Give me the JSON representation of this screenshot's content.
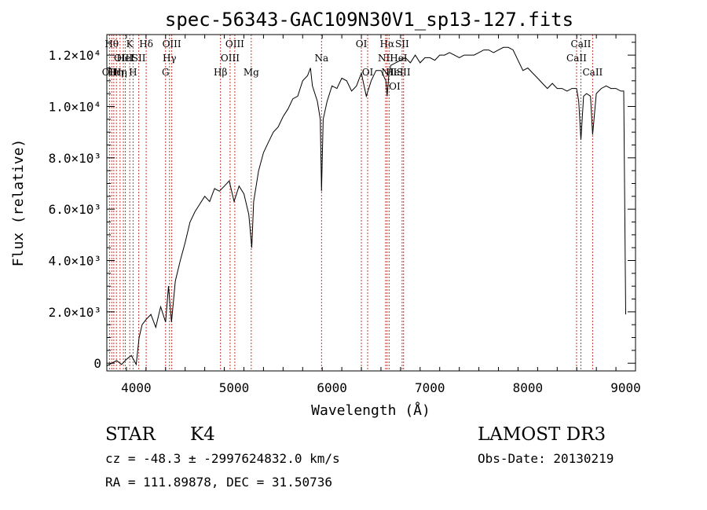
{
  "chart_data": {
    "type": "line",
    "title": "spec-56343-GAC109N30V1_sp13-127.fits",
    "xlabel": "Wavelength (Å)",
    "ylabel": "Flux (relative)",
    "xlim": [
      3700,
      9100
    ],
    "ylim": [
      -300,
      12800
    ],
    "x_ticks": [
      {
        "value": 4000,
        "label": "4000"
      },
      {
        "value": 5000,
        "label": "5000"
      },
      {
        "value": 6000,
        "label": "6000"
      },
      {
        "value": 7000,
        "label": "7000"
      },
      {
        "value": 8000,
        "label": "8000"
      },
      {
        "value": 9000,
        "label": "9000"
      }
    ],
    "y_ticks": [
      {
        "value": 0,
        "label": "0"
      },
      {
        "value": 2000,
        "label": "2.0×10³"
      },
      {
        "value": 4000,
        "label": "4.0×10³"
      },
      {
        "value": 6000,
        "label": "6.0×10³"
      },
      {
        "value": 8000,
        "label": "8.0×10³"
      },
      {
        "value": 10000,
        "label": "1.0×10⁴"
      },
      {
        "value": 12000,
        "label": "1.2×10⁴"
      }
    ],
    "series": [
      {
        "name": "spectrum",
        "x": [
          3700,
          3750,
          3800,
          3850,
          3900,
          3950,
          4000,
          4030,
          4060,
          4100,
          4150,
          4200,
          4250,
          4300,
          4330,
          4360,
          4400,
          4450,
          4500,
          4550,
          4600,
          4650,
          4700,
          4750,
          4800,
          4850,
          4900,
          4950,
          5000,
          5050,
          5100,
          5150,
          5180,
          5200,
          5250,
          5300,
          5350,
          5400,
          5450,
          5500,
          5550,
          5600,
          5650,
          5700,
          5750,
          5780,
          5800,
          5850,
          5880,
          5893,
          5910,
          5950,
          6000,
          6050,
          6100,
          6150,
          6200,
          6250,
          6300,
          6350,
          6400,
          6450,
          6500,
          6550,
          6563,
          6580,
          6600,
          6650,
          6700,
          6750,
          6800,
          6850,
          6900,
          6950,
          7000,
          7050,
          7100,
          7150,
          7200,
          7250,
          7300,
          7350,
          7400,
          7450,
          7500,
          7550,
          7600,
          7650,
          7700,
          7750,
          7800,
          7850,
          7900,
          7950,
          8000,
          8050,
          8100,
          8150,
          8200,
          8250,
          8300,
          8350,
          8400,
          8450,
          8498,
          8520,
          8542,
          8570,
          8600,
          8640,
          8662,
          8700,
          8750,
          8800,
          8850,
          8900,
          8950,
          8980,
          9000
        ],
        "y": [
          -100,
          0,
          100,
          -50,
          150,
          300,
          -50,
          1000,
          1500,
          1700,
          1900,
          1400,
          2200,
          1600,
          3000,
          1600,
          3200,
          4000,
          4700,
          5500,
          5900,
          6200,
          6500,
          6300,
          6800,
          6700,
          6900,
          7100,
          6300,
          6900,
          6600,
          5800,
          4500,
          6300,
          7500,
          8200,
          8600,
          9000,
          9200,
          9600,
          9900,
          10300,
          10400,
          11000,
          11200,
          11500,
          10800,
          10200,
          9500,
          6700,
          9500,
          10200,
          10800,
          10700,
          11100,
          11000,
          10600,
          10800,
          11300,
          10400,
          11000,
          11400,
          11400,
          11000,
          10400,
          11200,
          11600,
          11700,
          11800,
          11900,
          11700,
          12000,
          11700,
          11900,
          11900,
          11800,
          12000,
          12000,
          12100,
          12000,
          11900,
          12000,
          12000,
          12000,
          12100,
          12200,
          12200,
          12100,
          12200,
          12300,
          12300,
          12200,
          11800,
          11400,
          11500,
          11300,
          11100,
          10900,
          10700,
          10900,
          10700,
          10700,
          10600,
          10700,
          10700,
          10200,
          8700,
          10400,
          10500,
          10400,
          8900,
          10500,
          10700,
          10800,
          10700,
          10700,
          10600,
          10600,
          1900
        ]
      }
    ],
    "lines": [
      {
        "wavelength": 3727,
        "label": "OII",
        "row": 2
      },
      {
        "wavelength": 3750,
        "label": "Hθ",
        "row": 0
      },
      {
        "wavelength": 3771,
        "label": "Hι",
        "row": 2
      },
      {
        "wavelength": 3798,
        "label": "Hη",
        "row": 2
      },
      {
        "wavelength": 3835,
        "label": "Hη",
        "row": 2
      },
      {
        "wavelength": 3869,
        "label": "OIII",
        "row": 1
      },
      {
        "wavelength": 3889,
        "label": "HeI",
        "row": 1
      },
      {
        "wavelength": 3934,
        "label": "K",
        "row": 0
      },
      {
        "wavelength": 3968,
        "label": "H",
        "row": 2
      },
      {
        "wavelength": 4026,
        "label": "SII",
        "row": 1
      },
      {
        "wavelength": 4102,
        "label": "Hδ",
        "row": 0
      },
      {
        "wavelength": 4300,
        "label": "G",
        "row": 2
      },
      {
        "wavelength": 4340,
        "label": "Hγ",
        "row": 1
      },
      {
        "wavelength": 4363,
        "label": "OIII",
        "row": 0
      },
      {
        "wavelength": 4861,
        "label": "Hβ",
        "row": 2
      },
      {
        "wavelength": 4959,
        "label": "OIII",
        "row": 1
      },
      {
        "wavelength": 5007,
        "label": "OIII",
        "row": 0
      },
      {
        "wavelength": 5175,
        "label": "Mg",
        "row": 2
      },
      {
        "wavelength": 5893,
        "label": "Na",
        "row": 1
      },
      {
        "wavelength": 6300,
        "label": "OI",
        "row": 0
      },
      {
        "wavelength": 6364,
        "label": "OI",
        "row": 2
      },
      {
        "wavelength": 6548,
        "label": "NII",
        "row": 1
      },
      {
        "wavelength": 6563,
        "label": "Hα",
        "row": 0
      },
      {
        "wavelength": 6583,
        "label": "NII",
        "row": 2
      },
      {
        "wavelength": 6716,
        "label": "SII",
        "row": 0
      },
      {
        "wavelength": 6731,
        "label": "SII",
        "row": 2
      },
      {
        "wavelength": 8498,
        "label": "CaII",
        "row": 1
      },
      {
        "wavelength": 8542,
        "label": "CaII",
        "row": 0
      },
      {
        "wavelength": 8662,
        "label": "CaII",
        "row": 2
      }
    ],
    "overlap_labels": [
      {
        "wavelength": 6680,
        "label": "HeI",
        "row": 1
      },
      {
        "wavelength": 6640,
        "label": "HeI",
        "row": 2
      },
      {
        "wavelength": 6640,
        "label": "OI",
        "row": 3
      }
    ]
  },
  "info": {
    "object_class": "STAR",
    "subclass": "K4",
    "survey": "LAMOST DR3",
    "redshift": "cz = -48.3 ± -2997624832.0 km/s",
    "obs_date": "Obs-Date: 20130219",
    "coords": "RA = 111.89878, DEC =  31.50736"
  },
  "colors": {
    "spectrum": "#000000",
    "line_markers": "#c0392b",
    "axes": "#000000"
  }
}
